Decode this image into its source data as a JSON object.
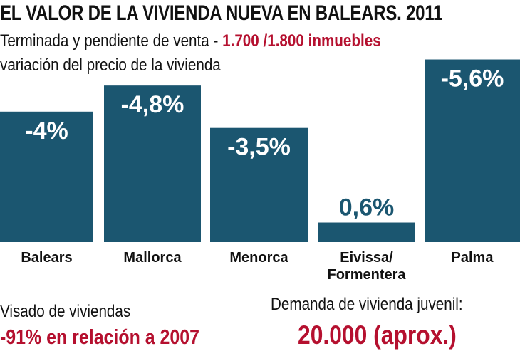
{
  "chart_data": {
    "type": "bar",
    "title": "EL VALOR DE LA VIVIENDA NUEVA EN BALEARS. 2011",
    "subtitle_prefix": "Terminada y pendiente de venta - ",
    "subtitle_highlight": "1.700 /1.800 inmuebles",
    "ylabel": "variación del precio de la vivienda",
    "categories": [
      "Balears",
      "Mallorca",
      "Menorca",
      "Eivissa/\nFormentera",
      "Palma"
    ],
    "category_lines": [
      [
        "Balears"
      ],
      [
        "Mallorca"
      ],
      [
        "Menorca"
      ],
      [
        "Eivissa/",
        "Formentera"
      ],
      [
        "Palma"
      ]
    ],
    "values": [
      -4,
      -4.8,
      -3.5,
      0.6,
      -5.6
    ],
    "value_labels": [
      "-4%",
      "-4,8%",
      "-3,5%",
      "0,6%",
      "-5,6%"
    ],
    "bars_drawn_as_magnitude": true,
    "grid": false
  },
  "footer": {
    "left_label": "Visado de viviendas",
    "left_value": "-91% en relación a 2007",
    "right_label": "Demanda de vivienda juvenil:",
    "right_value": "20.000 (aprox.)"
  },
  "colors": {
    "bar": "#1b5670",
    "accent": "#b5102f",
    "text": "#111111"
  }
}
